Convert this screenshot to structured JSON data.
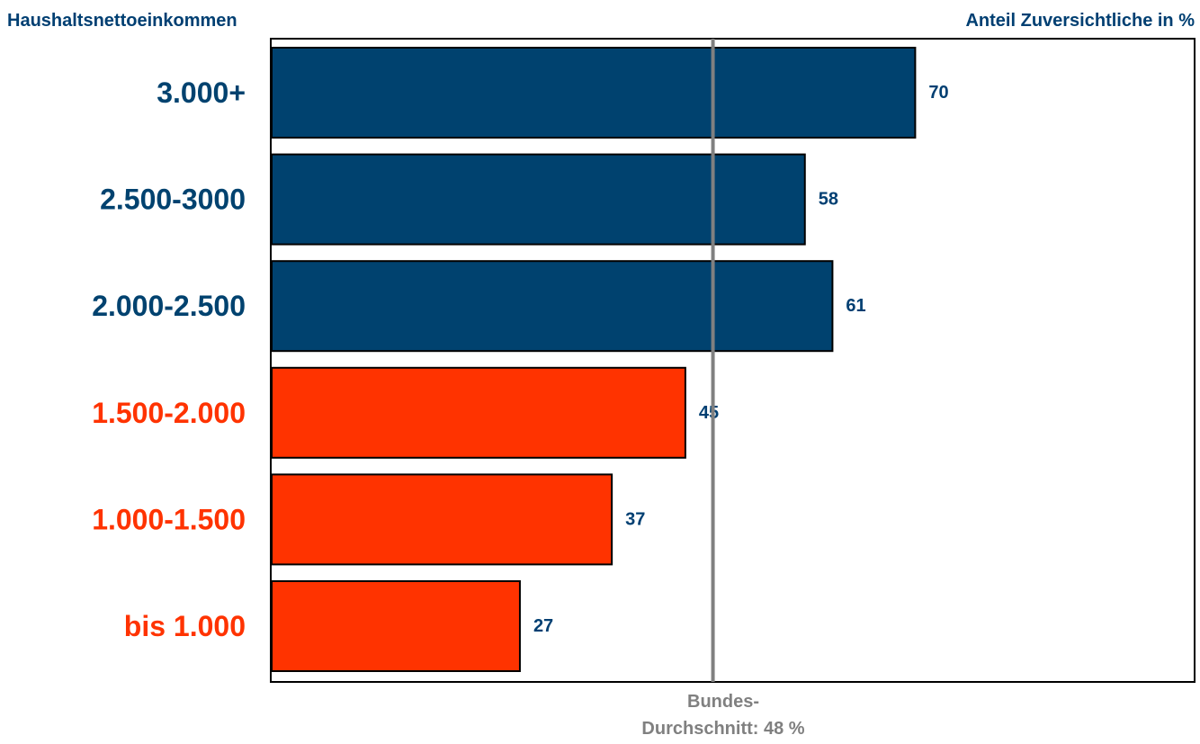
{
  "header": {
    "left_title": "Haushaltsnettoeinkommen",
    "right_title": "Anteil Zuversichtliche in %"
  },
  "colors": {
    "high_income": "#00426F",
    "low_income": "#FF3300",
    "value_label": "#003F72",
    "average_line": "#808080"
  },
  "chart_data": {
    "type": "bar",
    "orientation": "horizontal",
    "categories": [
      "3.000+",
      "2.500-3000",
      "2.000-2.500",
      "1.500-2.000",
      "1.000-1.500",
      "bis 1.000"
    ],
    "values": [
      70,
      58,
      61,
      45,
      37,
      27
    ],
    "value_labels": [
      "70",
      "58",
      "61",
      "45",
      "37",
      "27"
    ],
    "bar_colors": [
      "#00426F",
      "#00426F",
      "#00426F",
      "#FF3300",
      "#FF3300",
      "#FF3300"
    ],
    "xlim": [
      0,
      100
    ],
    "reference_line": {
      "value": 48,
      "label_line1": "Bundes-",
      "label_line2": "Durchschnitt:  48 %"
    },
    "xlabel": "Anteil Zuversichtliche in %",
    "ylabel": "Haushaltsnettoeinkommen",
    "legend": "none",
    "grid": false
  }
}
